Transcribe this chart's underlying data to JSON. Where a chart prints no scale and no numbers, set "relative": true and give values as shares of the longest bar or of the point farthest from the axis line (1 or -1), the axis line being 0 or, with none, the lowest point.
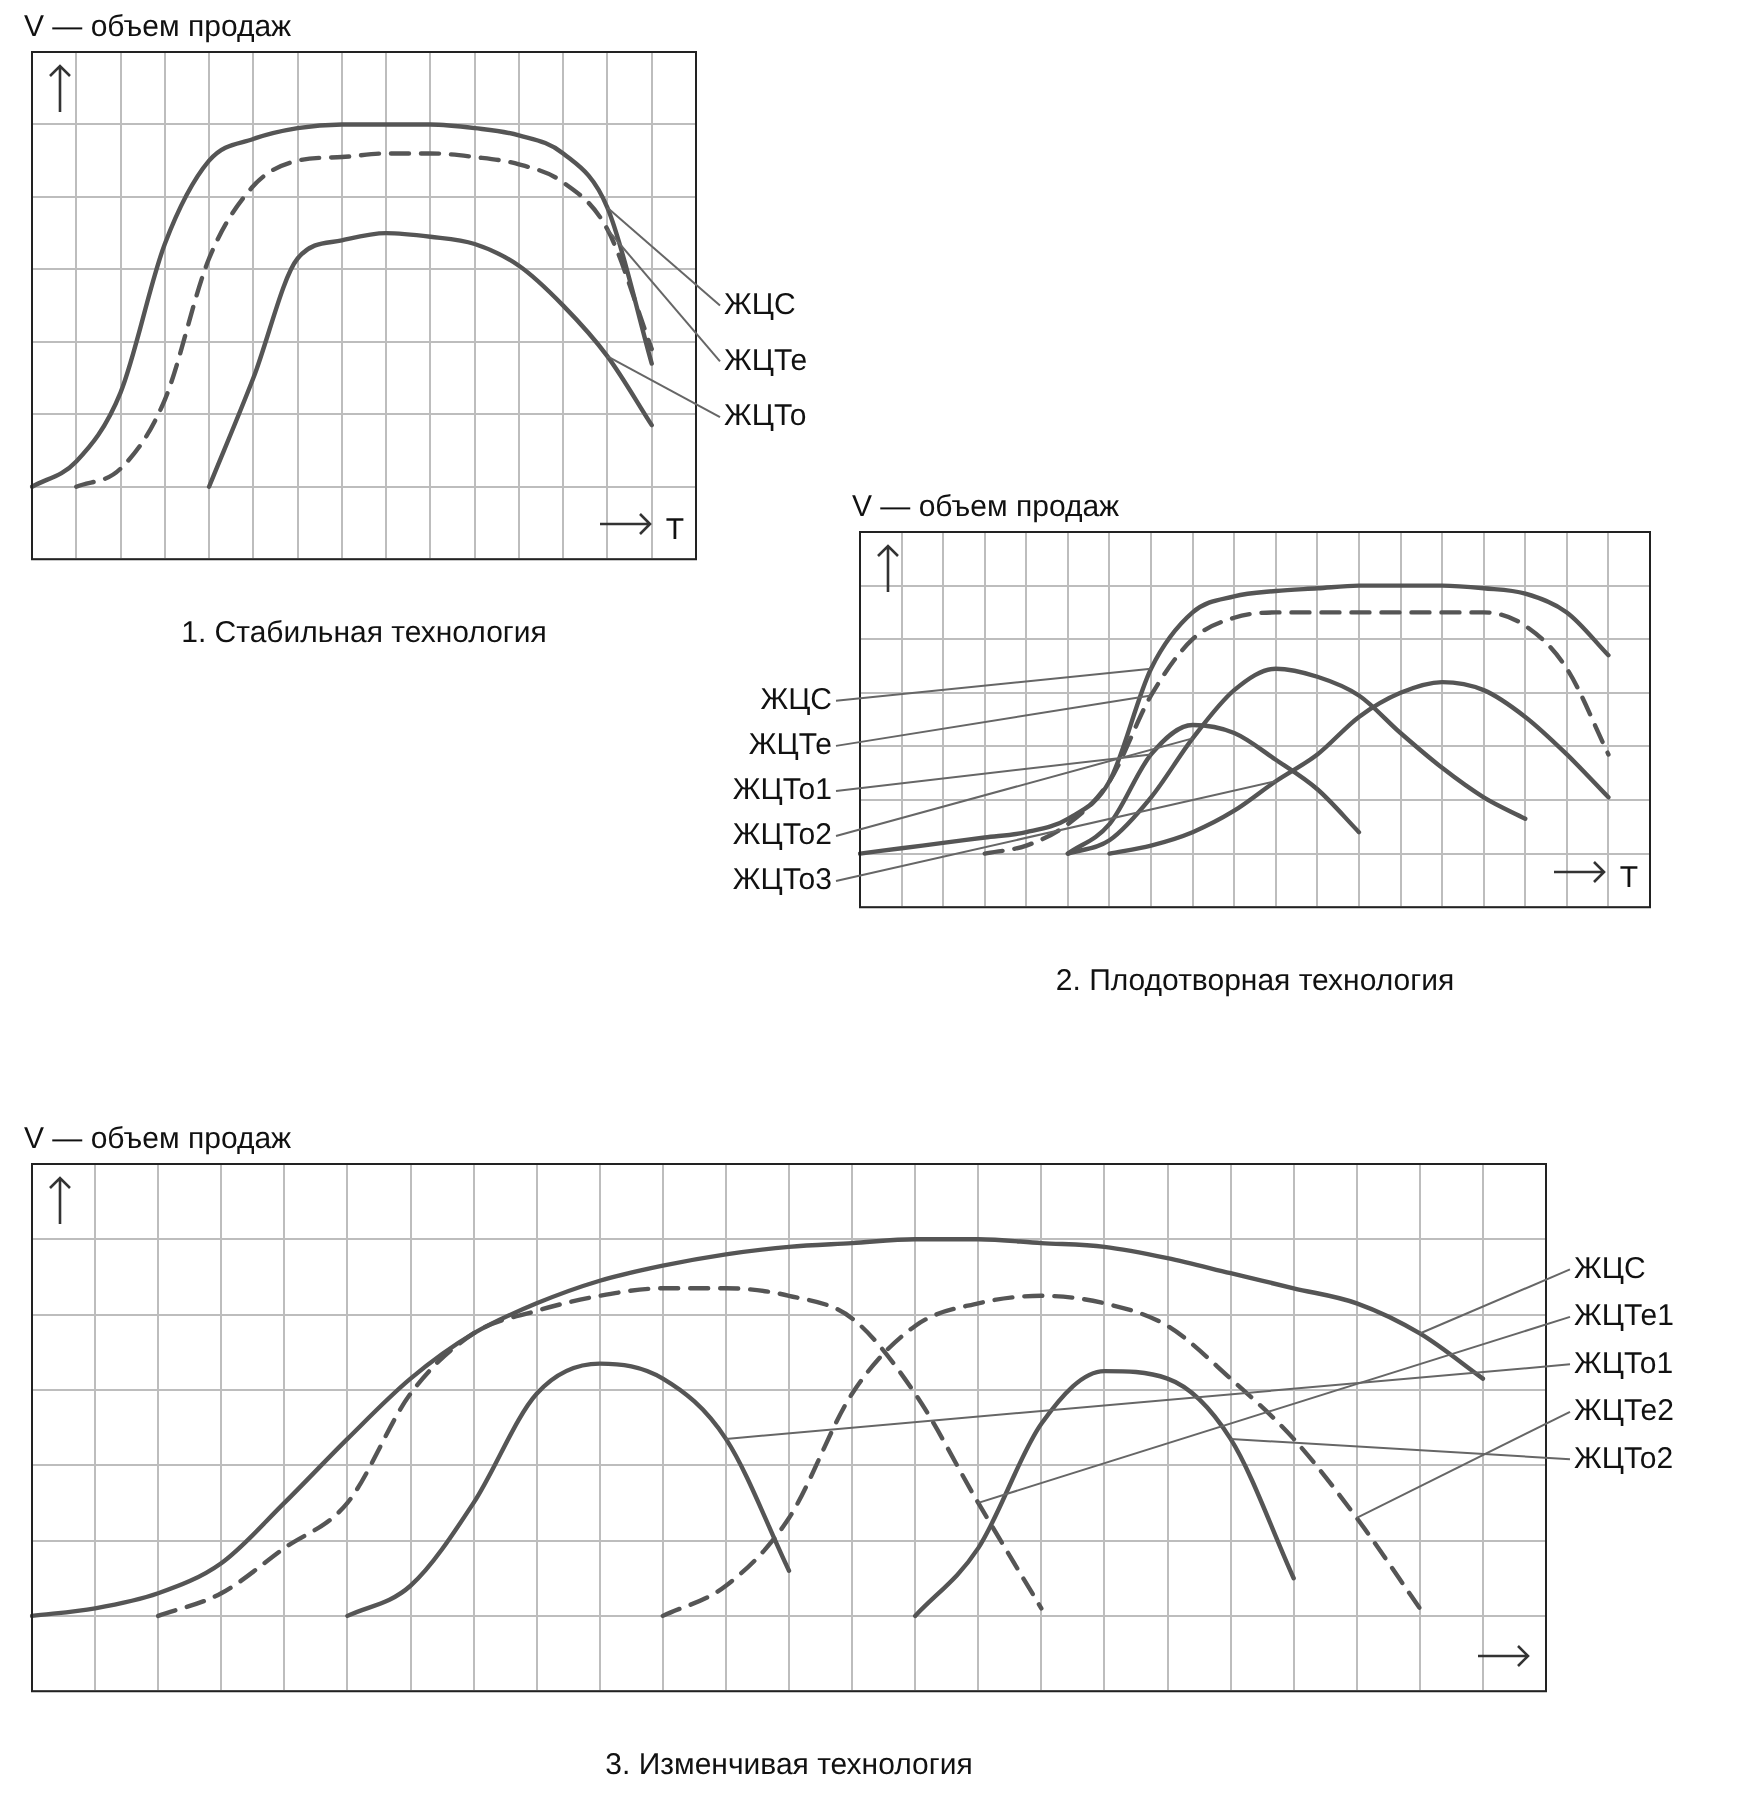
{
  "chart_data": [
    {
      "type": "line",
      "title": "1. Стабильная технология",
      "ylabel": "V — объем продаж",
      "xlabel": "T",
      "relative": true,
      "grid": true,
      "categories": [
        null,
        null,
        null,
        null,
        null,
        null,
        null,
        null,
        null,
        null,
        null,
        null,
        null,
        null,
        null,
        null
      ],
      "series": [
        {
          "name": "ЖЦС",
          "color": "#555555",
          "line_style": "solid",
          "values": [
            0,
            0.07,
            0.26,
            0.67,
            0.9,
            0.96,
            0.99,
            1,
            1,
            1,
            0.99,
            0.97,
            0.92,
            0.77,
            0.34,
            null
          ]
        },
        {
          "name": "ЖЦТе",
          "color": "#555555",
          "line_style": "dashed",
          "values": [
            null,
            0,
            0.05,
            0.24,
            0.63,
            0.83,
            0.9,
            0.91,
            0.92,
            0.92,
            0.91,
            0.89,
            0.84,
            0.71,
            0.38,
            null
          ]
        },
        {
          "name": "ЖЦТо",
          "color": "#555555",
          "line_style": "solid",
          "values": [
            null,
            null,
            null,
            null,
            0,
            0.3,
            0.63,
            0.68,
            0.7,
            0.69,
            0.67,
            0.61,
            0.5,
            0.36,
            0.17,
            null
          ]
        }
      ]
    },
    {
      "type": "line",
      "title": "2. Плодотворная технология",
      "ylabel": "V — объем продаж",
      "xlabel": "T",
      "relative": true,
      "grid": true,
      "categories": [
        null,
        null,
        null,
        null,
        null,
        null,
        null,
        null,
        null,
        null,
        null,
        null,
        null,
        null,
        null,
        null,
        null,
        null,
        null,
        null
      ],
      "series": [
        {
          "name": "ЖЦС",
          "color": "#555555",
          "line_style": "solid",
          "values": [
            0,
            0.02,
            0.04,
            0.06,
            0.08,
            0.13,
            0.27,
            0.69,
            0.9,
            0.96,
            0.98,
            0.99,
            1,
            1,
            1,
            0.99,
            0.97,
            0.9,
            0.74,
            null
          ]
        },
        {
          "name": "ЖЦТе",
          "color": "#555555",
          "line_style": "dashed",
          "values": [
            null,
            null,
            null,
            0,
            0.03,
            0.11,
            0.27,
            0.59,
            0.8,
            0.88,
            0.9,
            0.9,
            0.9,
            0.9,
            0.9,
            0.9,
            0.85,
            0.69,
            0.37,
            null
          ]
        },
        {
          "name": "ЖЦТо1",
          "color": "#555555",
          "line_style": "solid",
          "values": [
            null,
            null,
            null,
            null,
            null,
            0,
            0.11,
            0.37,
            0.48,
            0.45,
            0.35,
            0.24,
            0.08,
            null,
            null,
            null,
            null,
            null,
            null,
            null
          ]
        },
        {
          "name": "ЖЦТо2",
          "color": "#555555",
          "line_style": "solid",
          "values": [
            null,
            null,
            null,
            null,
            null,
            0,
            0.05,
            0.21,
            0.43,
            0.61,
            0.69,
            0.66,
            0.59,
            0.45,
            0.32,
            0.21,
            0.13,
            null,
            null,
            null
          ]
        },
        {
          "name": "ЖЦТо3",
          "color": "#555555",
          "line_style": "solid",
          "values": [
            null,
            null,
            null,
            null,
            null,
            null,
            0,
            0.03,
            0.08,
            0.16,
            0.27,
            0.37,
            0.51,
            0.6,
            0.64,
            0.61,
            0.51,
            0.37,
            0.21,
            null
          ]
        }
      ]
    },
    {
      "type": "line",
      "ylabel": "V — объем продаж",
      "title": "3. Изменчивая технология",
      "relative": true,
      "grid": true,
      "categories": [
        null,
        null,
        null,
        null,
        null,
        null,
        null,
        null,
        null,
        null,
        null,
        null,
        null,
        null,
        null,
        null,
        null,
        null,
        null,
        null,
        null,
        null,
        null,
        null,
        null
      ],
      "series": [
        {
          "name": "ЖЦС",
          "color": "#555555",
          "line_style": "solid",
          "values": [
            0,
            0.02,
            0.06,
            0.14,
            0.3,
            0.47,
            0.63,
            0.75,
            0.83,
            0.89,
            0.93,
            0.96,
            0.98,
            0.99,
            1,
            1,
            0.99,
            0.98,
            0.95,
            0.91,
            0.87,
            0.83,
            0.75,
            0.63,
            null
          ]
        },
        {
          "name": "ЖЦТе1",
          "color": "#555555",
          "line_style": "dashed",
          "values": [
            null,
            null,
            0,
            0.06,
            0.18,
            0.3,
            0.59,
            0.75,
            0.81,
            0.85,
            0.87,
            0.87,
            0.85,
            0.79,
            0.59,
            0.3,
            0.02,
            null,
            null,
            null,
            null,
            null,
            null,
            null,
            null
          ]
        },
        {
          "name": "ЖЦТо1",
          "color": "#555555",
          "line_style": "solid",
          "values": [
            null,
            null,
            null,
            null,
            null,
            0,
            0.08,
            0.3,
            0.59,
            0.67,
            0.63,
            0.47,
            0.12,
            null,
            null,
            null,
            null,
            null,
            null,
            null,
            null,
            null,
            null,
            null,
            null
          ]
        },
        {
          "name": "ЖЦТе2",
          "color": "#555555",
          "line_style": "dashed",
          "values": [
            null,
            null,
            null,
            null,
            null,
            null,
            null,
            null,
            null,
            null,
            0,
            0.08,
            0.26,
            0.59,
            0.77,
            0.83,
            0.85,
            0.83,
            0.77,
            0.63,
            0.47,
            0.26,
            0.02,
            null,
            null
          ]
        },
        {
          "name": "ЖЦТо2",
          "color": "#555555",
          "line_style": "solid",
          "values": [
            null,
            null,
            null,
            null,
            null,
            null,
            null,
            null,
            null,
            null,
            null,
            null,
            null,
            null,
            0,
            0.18,
            0.51,
            0.65,
            0.63,
            0.47,
            0.1,
            null,
            null,
            null,
            null
          ]
        }
      ]
    }
  ]
}
